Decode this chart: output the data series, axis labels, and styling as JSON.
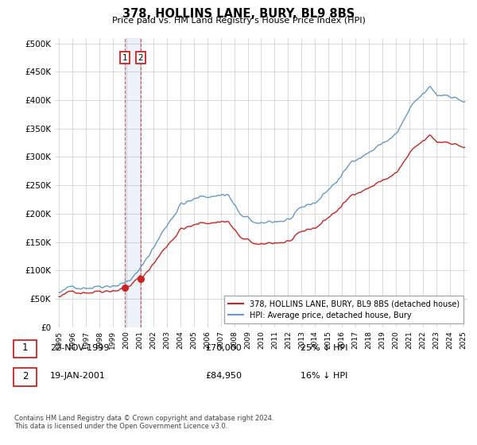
{
  "title": "378, HOLLINS LANE, BURY, BL9 8BS",
  "subtitle": "Price paid vs. HM Land Registry's House Price Index (HPI)",
  "ytick_values": [
    0,
    50000,
    100000,
    150000,
    200000,
    250000,
    300000,
    350000,
    400000,
    450000,
    500000
  ],
  "ylim": [
    0,
    510000
  ],
  "xlim_start": 1994.7,
  "xlim_end": 2025.3,
  "hpi_color": "#6699cc",
  "sale_color": "#cc2222",
  "legend_label_sale": "378, HOLLINS LANE, BURY, BL9 8BS (detached house)",
  "legend_label_hpi": "HPI: Average price, detached house, Bury",
  "sale1_year": 1999.896,
  "sale1_price": 70000,
  "sale1_label": "1",
  "sale2_year": 2001.05,
  "sale2_price": 84950,
  "sale2_label": "2",
  "transaction1_date": "22-NOV-1999",
  "transaction1_price": "£70,000",
  "transaction1_pct": "25% ↓ HPI",
  "transaction2_date": "19-JAN-2001",
  "transaction2_price": "£84,950",
  "transaction2_pct": "16% ↓ HPI",
  "footnote": "Contains HM Land Registry data © Crown copyright and database right 2024.\nThis data is licensed under the Open Government Licence v3.0.",
  "background_color": "#ffffff",
  "grid_color": "#cccccc"
}
